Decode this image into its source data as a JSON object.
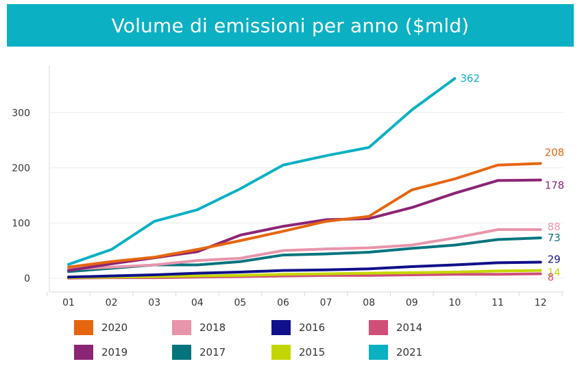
{
  "title": "Volume di emissioni per anno ($mld)",
  "chart_data": {
    "type": "line",
    "title": "Volume di emissioni per anno ($mld)",
    "xlabel": "",
    "ylabel": "",
    "categories": [
      "01",
      "02",
      "03",
      "04",
      "05",
      "06",
      "07",
      "08",
      "09",
      "10",
      "11",
      "12"
    ],
    "yticks": [
      "0",
      "100",
      "200",
      "300"
    ],
    "ylim": [
      -25,
      385
    ],
    "grid": true,
    "legend_position": "bottom",
    "series": [
      {
        "name": "2021",
        "color": "#0bb0c3",
        "values": [
          25,
          52,
          103,
          124,
          162,
          205,
          222,
          237,
          305,
          362,
          null,
          null
        ],
        "end_label": "362"
      },
      {
        "name": "2020",
        "color": "#e6650f",
        "values": [
          20,
          30,
          38,
          52,
          68,
          85,
          103,
          112,
          160,
          180,
          205,
          208
        ],
        "end_label": "208"
      },
      {
        "name": "2019",
        "color": "#8b2575",
        "values": [
          14,
          26,
          37,
          48,
          78,
          94,
          106,
          108,
          128,
          154,
          177,
          178
        ],
        "end_label": "178"
      },
      {
        "name": "2018",
        "color": "#e795ab",
        "values": [
          16,
          20,
          24,
          32,
          36,
          50,
          53,
          55,
          60,
          73,
          88,
          88
        ],
        "end_label": "88"
      },
      {
        "name": "2017",
        "color": "#04747d",
        "values": [
          12,
          18,
          24,
          24,
          30,
          42,
          44,
          47,
          54,
          60,
          70,
          73
        ],
        "end_label": "73"
      },
      {
        "name": "2016",
        "color": "#10108a",
        "values": [
          2,
          4,
          6,
          9,
          11,
          14,
          15,
          17,
          21,
          24,
          28,
          29
        ],
        "end_label": "29"
      },
      {
        "name": "2015",
        "color": "#c4d600",
        "values": [
          1,
          2,
          3,
          4,
          5,
          7,
          8,
          9,
          10,
          11,
          13,
          14
        ],
        "end_label": "14"
      },
      {
        "name": "2014",
        "color": "#d04f79",
        "values": [
          0,
          1,
          1,
          2,
          3,
          4,
          5,
          5,
          6,
          7,
          7,
          8
        ],
        "end_label": "8"
      }
    ]
  },
  "legend": [
    {
      "name": "2020",
      "color": "#e6650f"
    },
    {
      "name": "2018",
      "color": "#e795ab"
    },
    {
      "name": "2016",
      "color": "#10108a"
    },
    {
      "name": "2014",
      "color": "#d04f79"
    },
    {
      "name": "2019",
      "color": "#8b2575"
    },
    {
      "name": "2017",
      "color": "#04747d"
    },
    {
      "name": "2015",
      "color": "#c4d600"
    },
    {
      "name": "2021",
      "color": "#0bb0c3"
    }
  ]
}
